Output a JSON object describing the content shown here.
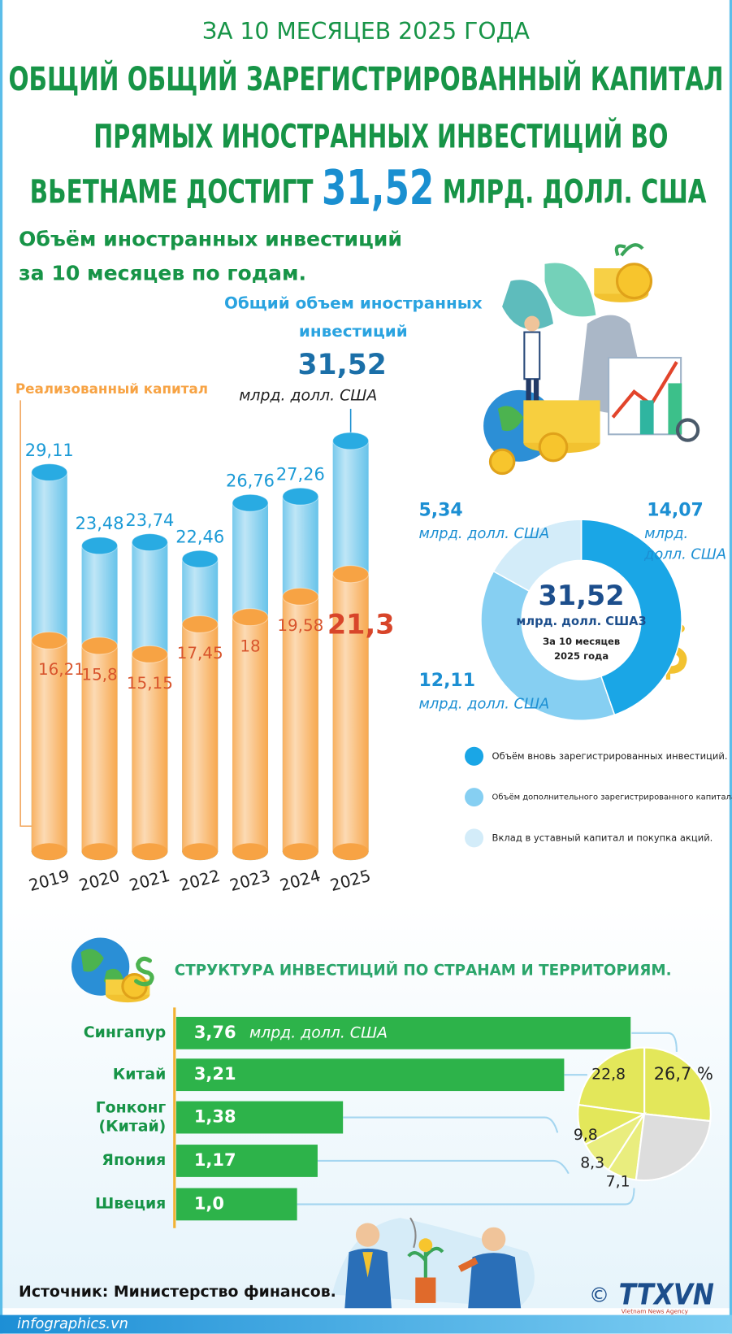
{
  "header": {
    "subtitle": "ЗА 10 МЕСЯЦЕВ 2025 ГОДА",
    "title_lines": [
      "ОБЩИЙ ОБЩИЙ ЗАРЕГИСТРИРОВАННЫЙ КАПИТАЛ",
      "ПРЯМЫХ ИНОСТРАННЫХ ИНВЕСТИЦИЙ ВО"
    ],
    "title_last": [
      "ВЬЕТНАМЕ ДОСТИГТ",
      "31,52",
      "МЛРД. ДОЛЛ. США"
    ]
  },
  "chart_data": [
    {
      "type": "bar",
      "title_lines": [
        "Объём иностранных инвестиций",
        "за 10 месяцев по годам."
      ],
      "categories": [
        "2019",
        "2020",
        "2021",
        "2022",
        "2023",
        "2024",
        "2025"
      ],
      "unit": "млрд. долл. США",
      "series": [
        {
          "name": "Общий объем иностранных инвестиций",
          "color": "#29abe2",
          "values": [
            29.11,
            23.48,
            23.74,
            22.46,
            26.76,
            27.26,
            31.52
          ],
          "value_labels": [
            "29,11",
            "23,48",
            "23,74",
            "22,46",
            "26,76",
            "27,26",
            "31,52"
          ]
        },
        {
          "name": "Реализованный капитал",
          "color": "#f7a344",
          "values": [
            16.21,
            15.8,
            15.15,
            17.45,
            18,
            19.58,
            21.3
          ],
          "value_labels": [
            "16,21",
            "15,8",
            "15,15",
            "17,45",
            "18",
            "19,58",
            "21,3"
          ]
        }
      ]
    },
    {
      "type": "pie",
      "donut": true,
      "center_label": "31,52",
      "center_unit": "млрд. долл. США3",
      "center_note": "За 10 месяцев 2025 года",
      "unit": "млрд. долл. США",
      "categories": [
        "Объём вновь зарегистрированных инвестиций.",
        "Объём дополнительного зарегистрированного капитала.",
        "Вклад в уставный капитал и покупка акций."
      ],
      "values": [
        14.07,
        12.11,
        5.34
      ],
      "value_labels": [
        "14,07",
        "12,11",
        "5,34"
      ],
      "colors": [
        "#1aa6e6",
        "#86cff2",
        "#d3ecf9"
      ]
    },
    {
      "type": "bar",
      "horizontal": true,
      "title": "СТРУКТУРА ИНВЕСТИЦИЙ ПО СТРАНАМ И ТЕРРИТОРИЯМ.",
      "categories": [
        "Сингапур",
        "Китай",
        "Гонконг (Китай)",
        "Япония",
        "Швеция"
      ],
      "values": [
        3.76,
        3.21,
        1.38,
        1.17,
        1.0
      ],
      "value_labels": [
        "3,76",
        "3,21",
        "1,38",
        "1,17",
        "1,0"
      ],
      "unit": "млрд. долл. США",
      "color": "#2db34a"
    },
    {
      "type": "pie",
      "values": [
        26.7,
        22.8,
        9.8,
        8.3,
        7.1,
        25.3
      ],
      "value_labels": [
        "26,7 %",
        "22,8",
        "9,8",
        "8,3",
        "7,1",
        null
      ],
      "colors": [
        "#e3e75a",
        "#e3e75a",
        "#e3e75a",
        "#e9ed7e",
        "#e9ed7e",
        "#dddddd"
      ]
    }
  ],
  "footer": {
    "source": "Источник: Министерство финансов.",
    "site": "infographics.vn",
    "copyright": "©",
    "logo": "TTXVN",
    "agency": "Vietnam News Agency"
  }
}
